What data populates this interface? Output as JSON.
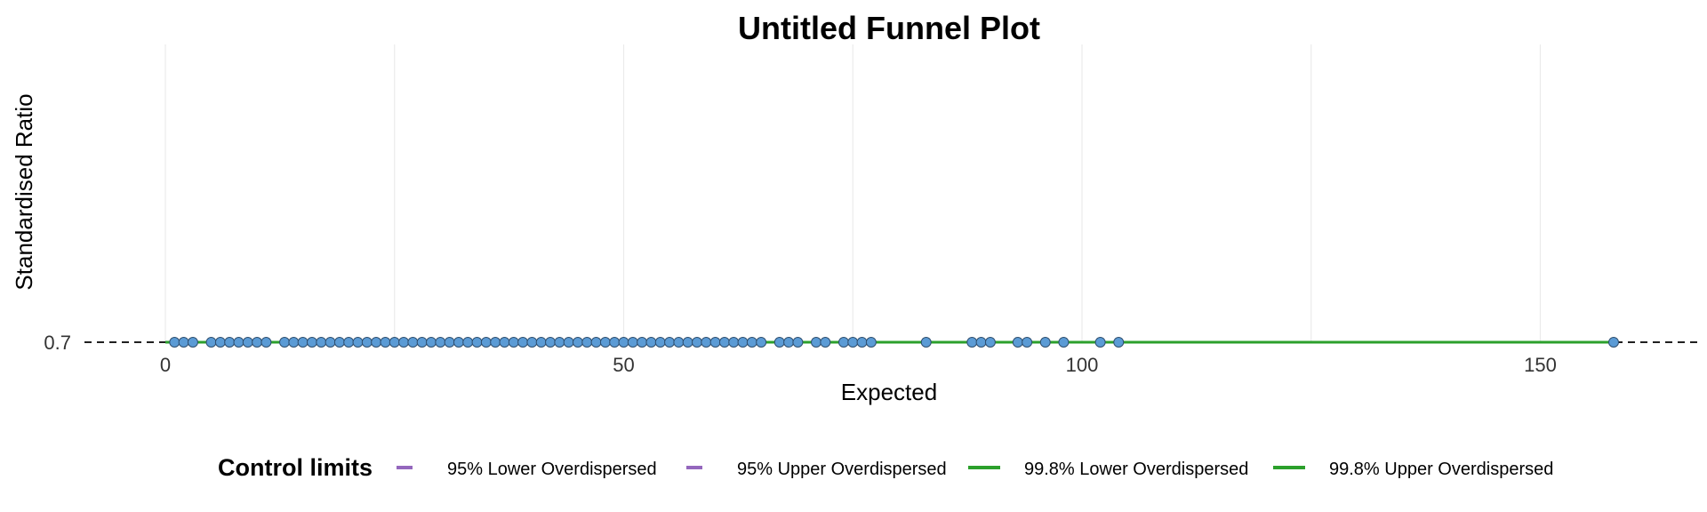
{
  "chart_data": {
    "type": "scatter",
    "title": "Untitled Funnel Plot",
    "xlabel": "Expected",
    "ylabel": "Standardised Ratio",
    "x_ticks": [
      0,
      50,
      100,
      150
    ],
    "y_ticks": [
      "0.7"
    ],
    "xlim": [
      -8.5,
      167.5
    ],
    "target_line": {
      "y": 0.7,
      "style": "dashed",
      "color": "#000000"
    },
    "grid": "vertical",
    "points": {
      "y": 0.7,
      "fill": "#5b9bd5",
      "x": [
        1,
        2,
        3,
        5,
        6,
        7,
        8,
        9,
        10,
        11,
        13,
        14,
        15,
        16,
        17,
        18,
        19,
        20,
        21,
        22,
        23,
        24,
        25,
        26,
        27,
        28,
        29,
        30,
        31,
        32,
        33,
        34,
        35,
        36,
        37,
        38,
        39,
        40,
        41,
        42,
        43,
        44,
        45,
        46,
        47,
        48,
        49,
        50,
        51,
        52,
        53,
        54,
        55,
        56,
        57,
        58,
        59,
        60,
        61,
        62,
        63,
        64,
        65,
        67,
        68,
        69,
        71,
        72,
        74,
        75,
        76,
        77,
        83,
        88,
        89,
        90,
        93,
        94,
        96,
        98,
        102,
        104,
        158
      ]
    },
    "series": [
      {
        "name": "95% Lower Overdispersed",
        "color": "#9467bd",
        "x": [
          0,
          158
        ],
        "y": [
          0.7,
          0.7
        ]
      },
      {
        "name": "95% Upper Overdispersed",
        "color": "#9467bd",
        "x": [
          0,
          158
        ],
        "y": [
          0.7,
          0.7
        ]
      },
      {
        "name": "99.8% Lower Overdispersed",
        "color": "#2ca02c",
        "x": [
          0,
          158
        ],
        "y": [
          0.7,
          0.7
        ]
      },
      {
        "name": "99.8% Upper Overdispersed",
        "color": "#2ca02c",
        "x": [
          0,
          158
        ],
        "y": [
          0.7,
          0.7
        ]
      }
    ],
    "legend": {
      "title": "Control limits",
      "position": "bottom"
    }
  }
}
